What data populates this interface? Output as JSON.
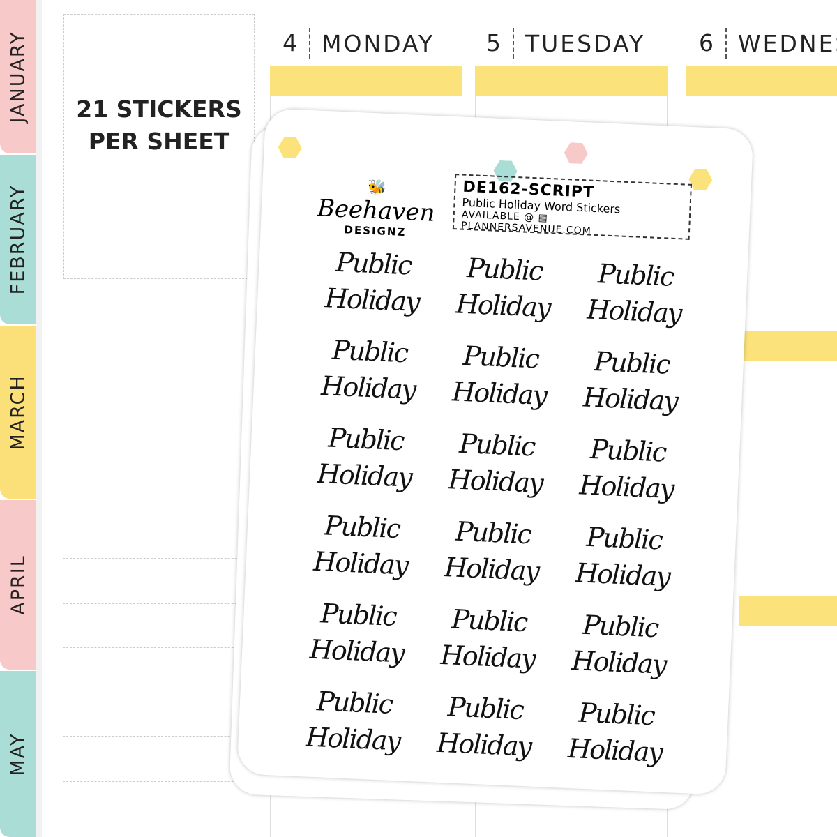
{
  "tabs": [
    {
      "label": "JANUARY",
      "color": "#f8c9c9"
    },
    {
      "label": "FEBRUARY",
      "color": "#a9ddd6"
    },
    {
      "label": "MARCH",
      "color": "#fbe07a"
    },
    {
      "label": "APRIL",
      "color": "#f8c9c9"
    },
    {
      "label": "MAY",
      "color": "#a9ddd6"
    }
  ],
  "info": {
    "line1": "21 STICKERS",
    "line2": "PER SHEET"
  },
  "days": [
    {
      "num": "4",
      "name": "MONDAY"
    },
    {
      "num": "5",
      "name": "TUESDAY"
    },
    {
      "num": "6",
      "name": "WEDNES"
    }
  ],
  "sheet": {
    "brand_script": "Beehaven",
    "brand_caps": "DESIGNZ",
    "code": "DE162-SCRIPT",
    "title": "Public Holiday Word Stickers",
    "available": "AVAILABLE @ ▤ PLANNERSAVENUE.COM",
    "sticker_line1": "Public",
    "sticker_line2": "Holiday",
    "watermark": "BEEHAVEN DESIGNZ"
  },
  "colors": {
    "yellow": "#fbe27a",
    "pink": "#f8c9c9",
    "teal": "#a9ddd6"
  }
}
